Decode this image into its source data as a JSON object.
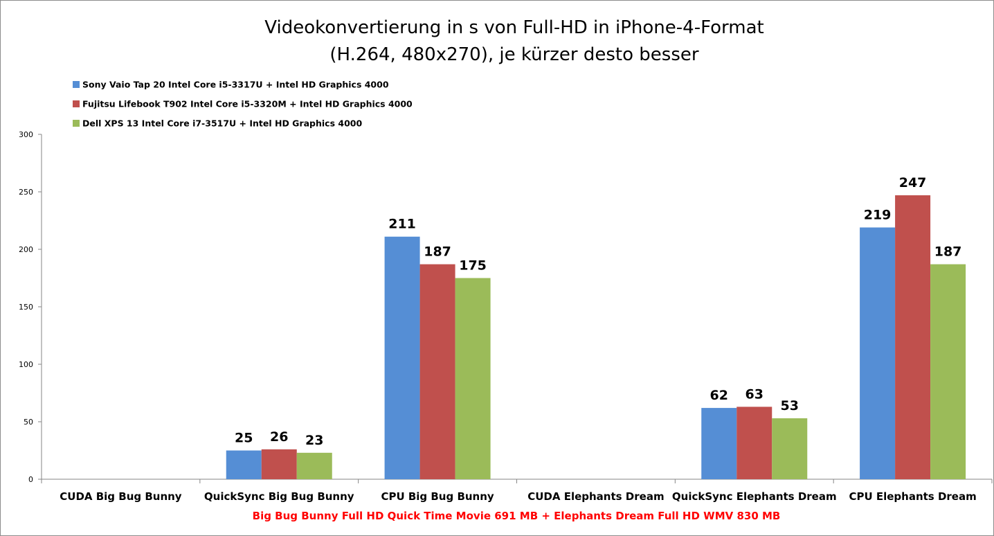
{
  "chart_data": {
    "type": "bar",
    "title_lines": [
      "Videokonvertierung in s von Full-HD in iPhone-4-Format",
      "(H.264, 480x270), je kürzer desto besser"
    ],
    "categories": [
      "CUDA Big Bug Bunny",
      "QuickSync Big Bug Bunny",
      "CPU Big Bug Bunny",
      "CUDA Elephants Dream",
      "QuickSync Elephants Dream",
      "CPU Elephants Dream"
    ],
    "series": [
      {
        "name": "Sony Vaio Tap 20 Intel Core i5-3317U + Intel HD Graphics 4000",
        "color": "#558ed5",
        "values": [
          null,
          25,
          211,
          null,
          62,
          219
        ]
      },
      {
        "name": "Fujitsu Lifebook T902 Intel Core i5-3320M + Intel HD Graphics 4000",
        "color": "#c0504d",
        "values": [
          null,
          26,
          187,
          null,
          63,
          247
        ]
      },
      {
        "name": "Dell XPS 13 Intel Core i7-3517U + Intel HD Graphics 4000",
        "color": "#9bbb59",
        "values": [
          null,
          23,
          175,
          null,
          53,
          187
        ]
      }
    ],
    "ylim": [
      0,
      300
    ],
    "yticks": [
      0,
      50,
      100,
      150,
      200,
      250,
      300
    ],
    "xlabel": "Big Bug Bunny Full HD Quick Time Movie 691 MB + Elephants Dream Full HD WMV 830 MB",
    "xlabel_color": "#ff0000",
    "legend_position": "top-left",
    "grid": false
  }
}
